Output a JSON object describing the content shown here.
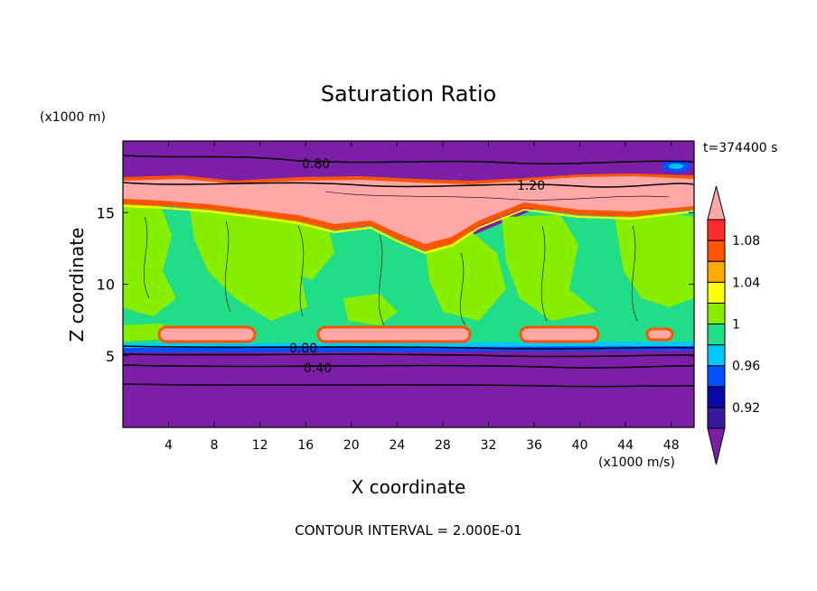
{
  "chart_data": {
    "type": "heatmap",
    "title": "Saturation Ratio",
    "y_unit_label": "(x1000 m)",
    "x_unit_label": "(x1000 m/s)",
    "time_label": "t=374400 s",
    "xlabel": "X coordinate",
    "ylabel": "Z coordinate",
    "footer": "CONTOUR INTERVAL = 2.000E-01",
    "xlim": [
      0,
      50
    ],
    "ylim": [
      0,
      20
    ],
    "x_ticks": [
      "4",
      "8",
      "12",
      "16",
      "20",
      "24",
      "28",
      "32",
      "36",
      "40",
      "44",
      "48"
    ],
    "y_ticks": [
      "5",
      "10",
      "15"
    ],
    "contour_labels": [
      "0.80",
      "1.20",
      "0.80",
      "0.40"
    ],
    "colorbar": {
      "labels": [
        "1.08",
        "1.04",
        "1",
        "0.96",
        "0.92"
      ],
      "levels": [
        {
          "label": "<0.90",
          "color": "#7a1fa6"
        },
        {
          "label": "0.90-0.92",
          "color": "#3a1a9c"
        },
        {
          "label": "0.92-0.94",
          "color": "#0a0aa8"
        },
        {
          "label": "0.94-0.96",
          "color": "#0050ff"
        },
        {
          "label": "0.96-0.98",
          "color": "#00c8ff"
        },
        {
          "label": "0.98-1.00",
          "color": "#22dd88"
        },
        {
          "label": "1.00-1.02",
          "color": "#88ee00"
        },
        {
          "label": "1.02-1.04",
          "color": "#ffff00"
        },
        {
          "label": "1.04-1.06",
          "color": "#ffaa00"
        },
        {
          "label": "1.06-1.08",
          "color": "#ff5500"
        },
        {
          "label": "1.08-1.10",
          "color": "#ff2a2a"
        },
        {
          "label": ">1.10",
          "color": "#ffa8a8"
        }
      ]
    }
  }
}
